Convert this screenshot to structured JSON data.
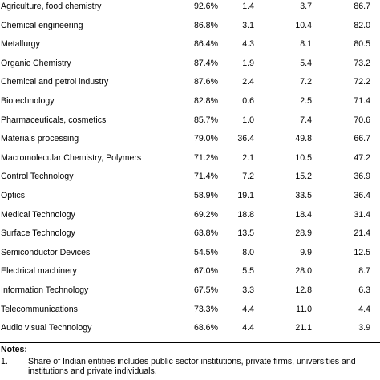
{
  "table": {
    "rows": [
      {
        "field": "Agriculture, food chemistry",
        "share": "92.6%",
        "v2": "1.4",
        "v3": "3.7",
        "v4": "86.7"
      },
      {
        "field": "Chemical engineering",
        "share": "86.8%",
        "v2": "3.1",
        "v3": "10.4",
        "v4": "82.0"
      },
      {
        "field": "Metallurgy",
        "share": "86.4%",
        "v2": "4.3",
        "v3": "8.1",
        "v4": "80.5"
      },
      {
        "field": "Organic Chemistry",
        "share": "87.4%",
        "v2": "1.9",
        "v3": "5.4",
        "v4": "73.2"
      },
      {
        "field": "Chemical and petrol industry",
        "share": "87.6%",
        "v2": "2.4",
        "v3": "7.2",
        "v4": "72.2"
      },
      {
        "field": "Biotechnology",
        "share": "82.8%",
        "v2": "0.6",
        "v3": "2.5",
        "v4": "71.4"
      },
      {
        "field": "Pharmaceuticals, cosmetics",
        "share": "85.7%",
        "v2": "1.0",
        "v3": "7.4",
        "v4": "70.6"
      },
      {
        "field": "Materials processing",
        "share": "79.0%",
        "v2": "36.4",
        "v3": "49.8",
        "v4": "66.7"
      },
      {
        "field": "Macromolecular Chemistry, Polymers",
        "share": "71.2%",
        "v2": "2.1",
        "v3": "10.5",
        "v4": "47.2"
      },
      {
        "field": "Control Technology",
        "share": "71.4%",
        "v2": "7.2",
        "v3": "15.2",
        "v4": "36.9"
      },
      {
        "field": "Optics",
        "share": "58.9%",
        "v2": "19.1",
        "v3": "33.5",
        "v4": "36.4"
      },
      {
        "field": "Medical Technology",
        "share": "69.2%",
        "v2": "18.8",
        "v3": "18.4",
        "v4": "31.4"
      },
      {
        "field": "Surface Technology",
        "share": "63.8%",
        "v2": "13.5",
        "v3": "28.9",
        "v4": "21.4"
      },
      {
        "field": "Semiconductor Devices",
        "share": "54.5%",
        "v2": "8.0",
        "v3": "9.9",
        "v4": "12.5"
      },
      {
        "field": "Electrical machinery",
        "share": "67.0%",
        "v2": "5.5",
        "v3": "28.0",
        "v4": "8.7"
      },
      {
        "field": "Information Technology",
        "share": "67.5%",
        "v2": "3.3",
        "v3": "12.8",
        "v4": "6.3"
      },
      {
        "field": "Telecommunications",
        "share": "73.3%",
        "v2": "4.4",
        "v3": "11.0",
        "v4": "4.4"
      },
      {
        "field": "Audio visual Technology",
        "share": "68.6%",
        "v2": "4.4",
        "v3": "21.1",
        "v4": "3.9"
      }
    ]
  },
  "notes": {
    "title": "Notes:",
    "items": [
      {
        "num": "1.",
        "text": "Share of Indian entities includes public sector institutions, private firms, universities and institutions and private individuals."
      }
    ]
  }
}
